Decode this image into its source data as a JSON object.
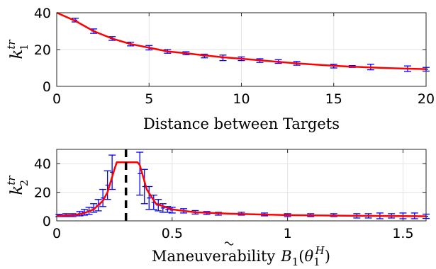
{
  "chart_data": [
    {
      "type": "line",
      "xlabel": "Distance between Targets",
      "ylabel": {
        "main": "k",
        "sup": "tr",
        "sub": "1"
      },
      "xlim": [
        0,
        20
      ],
      "ylim": [
        0,
        40
      ],
      "xticks": [
        0,
        5,
        10,
        15,
        20
      ],
      "yticks": [
        0,
        20,
        40
      ],
      "grid": true,
      "series": [
        {
          "color": "#ff0000",
          "x": [
            0,
            1,
            2,
            3,
            4,
            5,
            6,
            7,
            8,
            9,
            10,
            11,
            12,
            13,
            14,
            15,
            16,
            17,
            18,
            19,
            20
          ],
          "y": [
            40,
            35.6,
            30,
            26,
            23,
            21,
            19,
            18,
            16.8,
            15.8,
            15,
            14.2,
            13.3,
            12.5,
            11.8,
            11.2,
            10.7,
            10.3,
            9.9,
            9.6,
            9.4
          ]
        }
      ],
      "errorbars": {
        "color": "#0000ff",
        "x": [
          1,
          2,
          3,
          4,
          5,
          6,
          7,
          8,
          9,
          10,
          11,
          12,
          13,
          15,
          16,
          17,
          19,
          20
        ],
        "y": [
          36,
          30,
          26,
          23,
          21,
          19,
          18,
          16.5,
          15.5,
          15,
          14,
          13.5,
          12.5,
          11,
          10.8,
          10.5,
          9.6,
          9.3
        ],
        "err": [
          1,
          1.2,
          1,
          1,
          1.2,
          1,
          0.8,
          1,
          1.5,
          1,
          1,
          1,
          1,
          1,
          0.5,
          1.5,
          1.5,
          1
        ]
      },
      "markers": []
    },
    {
      "type": "line",
      "xlabel": "Maneuverability",
      "xlabel_math": {
        "B": "B",
        "sub": "1",
        "theta": "θ",
        "tsub": "1",
        "tsup": "H"
      },
      "ylabel": {
        "main": "k",
        "sup": "tr",
        "sub": "2"
      },
      "xlim": [
        0,
        1.6
      ],
      "ylim": [
        0,
        50
      ],
      "xticks": [
        0,
        0.5,
        1,
        1.5
      ],
      "yticks": [
        0,
        20,
        40
      ],
      "grid": true,
      "vline": {
        "x": 0.3,
        "color": "#000000",
        "style": "dashed"
      },
      "series": [
        {
          "color": "#ff0000",
          "x": [
            0,
            0.08,
            0.12,
            0.16,
            0.2,
            0.22,
            0.25,
            0.26,
            0.35,
            0.36,
            0.39,
            0.43,
            0.5,
            0.6,
            0.75,
            1.0,
            1.3,
            1.6
          ],
          "y": [
            3.5,
            4,
            5.5,
            8,
            14,
            20,
            36,
            41,
            41,
            39,
            22,
            12,
            8,
            6,
            5,
            4,
            3.5,
            3.2
          ]
        }
      ],
      "errorbars": {
        "color": "#0000ff",
        "x": [
          0.01,
          0.04,
          0.07,
          0.1,
          0.12,
          0.14,
          0.16,
          0.18,
          0.2,
          0.22,
          0.24,
          0.36,
          0.38,
          0.4,
          0.42,
          0.44,
          0.46,
          0.48,
          0.5,
          0.55,
          0.6,
          0.65,
          0.7,
          0.8,
          0.9,
          1.0,
          1.1,
          1.2,
          1.3,
          1.35,
          1.4,
          1.45,
          1.5,
          1.55,
          1.6
        ],
        "y": [
          3.8,
          4,
          4,
          5,
          6,
          7,
          9,
          11,
          16,
          25,
          34,
          33,
          24,
          16,
          13,
          11,
          9,
          8,
          7.5,
          7,
          6,
          5.5,
          5,
          5,
          4.5,
          4,
          4,
          4,
          3.5,
          3.5,
          3.5,
          3.5,
          3.5,
          3.5,
          3.2
        ],
        "err": [
          0.8,
          1,
          1,
          1.5,
          2,
          2.5,
          3,
          4,
          6,
          10,
          12,
          15,
          12,
          8,
          5,
          4,
          3,
          2,
          2,
          1.5,
          1.2,
          1,
          1,
          1,
          1,
          1,
          1,
          1,
          1.5,
          1.5,
          2,
          1.5,
          2,
          2,
          1.5
        ]
      },
      "markers": [
        {
          "x": 0.25,
          "y": 41
        },
        {
          "x": 0.36,
          "y": 41
        }
      ]
    }
  ]
}
